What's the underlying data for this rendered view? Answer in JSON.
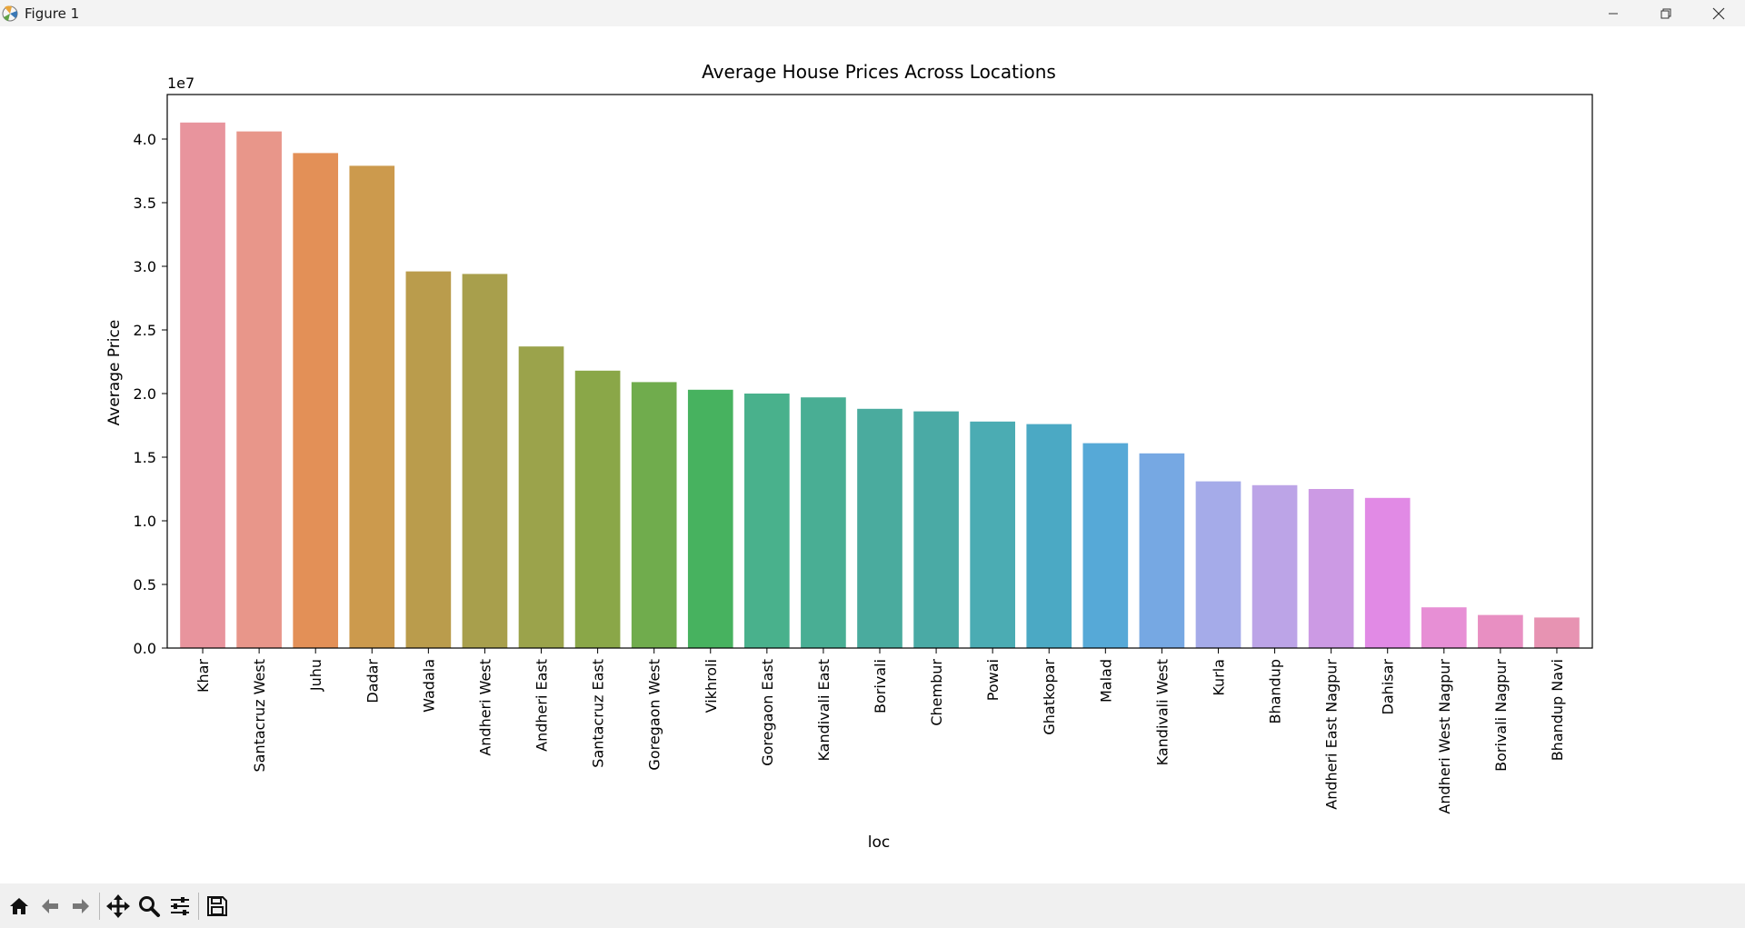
{
  "window": {
    "title": "Figure 1",
    "icons": [
      "matplotlib-icon",
      "minimize-icon",
      "restore-icon",
      "close-icon"
    ]
  },
  "toolbar": {
    "tools": [
      "home-icon",
      "back-icon",
      "forward-icon",
      "pan-icon",
      "zoom-icon",
      "configure-subplots-icon",
      "save-icon"
    ]
  },
  "chart_data": {
    "type": "bar",
    "title": "Average House Prices Across Locations",
    "xlabel": "loc",
    "ylabel": "Average Price",
    "offset_label": "1e7",
    "ylim": [
      0,
      4.35
    ],
    "yticks": [
      "0.0",
      "0.5",
      "1.0",
      "1.5",
      "2.0",
      "2.5",
      "3.0",
      "3.5",
      "4.0"
    ],
    "grid": false,
    "categories": [
      "Khar",
      "Santacruz West",
      "Juhu",
      "Dadar",
      "Wadala",
      "Andheri West",
      "Andheri East",
      "Santacruz East",
      "Goregaon West",
      "Vikhroli",
      "Goregaon East",
      "Kandivali East",
      "Borivali",
      "Chembur",
      "Powai",
      "Ghatkopar",
      "Malad",
      "Kandivali West",
      "Kurla",
      "Bhandup",
      "Andheri East Nagpur",
      "Dahisar",
      "Andheri West Nagpur",
      "Borivali Nagpur",
      "Bhandup Navi"
    ],
    "values": [
      4.13,
      4.06,
      3.89,
      3.79,
      2.96,
      2.94,
      2.37,
      2.18,
      2.09,
      2.03,
      2.0,
      1.97,
      1.88,
      1.86,
      1.78,
      1.76,
      1.61,
      1.53,
      1.31,
      1.28,
      1.25,
      1.18,
      0.32,
      0.26,
      0.24
    ],
    "colors": [
      "#e8949d",
      "#e8968a",
      "#e39057",
      "#cc9a4d",
      "#ba9c4c",
      "#a89f4c",
      "#9ba34b",
      "#8aa748",
      "#70ac4d",
      "#47b25f",
      "#49b18c",
      "#49ae94",
      "#4aab9e",
      "#4aaaa5",
      "#4bacb3",
      "#4ba9c4",
      "#56a9d7",
      "#76a8e3",
      "#a5abe9",
      "#bca4e7",
      "#cc9ae4",
      "#e18ae5",
      "#e78fd5",
      "#e88fc2",
      "#e793b2"
    ]
  }
}
